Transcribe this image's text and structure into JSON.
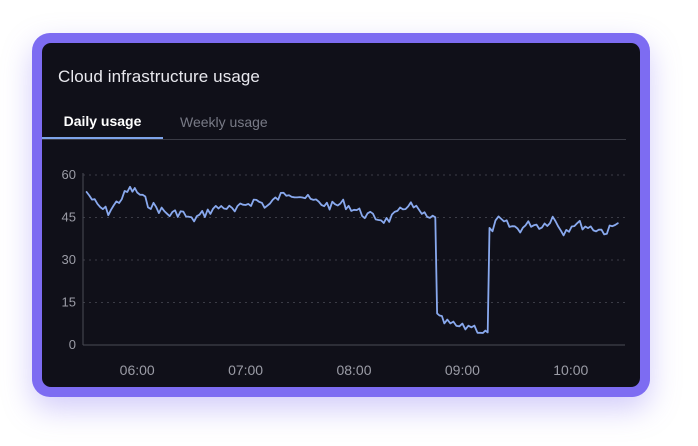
{
  "card": {
    "title": "Cloud infrastructure usage"
  },
  "tabs": [
    {
      "label": "Daily usage",
      "active": true
    },
    {
      "label": "Weekly usage",
      "active": false
    }
  ],
  "colors": {
    "frame": "#7d6cf2",
    "card_background": "#101019",
    "line": "#89a9ee",
    "active_tab_underline": "#7ea4ea",
    "gridline": "#3b3c46"
  },
  "chart_data": {
    "type": "line",
    "title": "",
    "xlabel": "",
    "ylabel": "",
    "xlim": [
      "05:30",
      "10:30"
    ],
    "ylim": [
      0,
      60
    ],
    "yticks": [
      0,
      15,
      30,
      45,
      60
    ],
    "xticks": [
      "06:00",
      "07:00",
      "08:00",
      "09:00",
      "10:00"
    ],
    "grid": "horizontal dotted",
    "legend": "none",
    "series": [
      {
        "x": [
          "05:32",
          "05:38",
          "05:44",
          "05:50",
          "05:56",
          "06:00",
          "06:06",
          "06:12",
          "06:18",
          "06:24",
          "06:30",
          "06:36",
          "06:42",
          "06:48",
          "06:54",
          "07:00",
          "07:06",
          "07:12",
          "07:18",
          "07:24",
          "07:30",
          "07:36",
          "07:42",
          "07:48",
          "07:54",
          "08:00",
          "08:06",
          "08:12",
          "08:18",
          "08:24",
          "08:30",
          "08:36",
          "08:42",
          "08:45",
          "08:46",
          "08:50",
          "08:55",
          "09:00",
          "09:05",
          "09:10",
          "09:14",
          "09:15",
          "09:20",
          "09:26",
          "09:32",
          "09:38",
          "09:44",
          "09:50",
          "09:56",
          "10:02",
          "10:08",
          "10:14",
          "10:20",
          "10:26"
        ],
        "y": [
          54,
          49,
          47,
          51,
          55,
          54,
          50,
          48,
          46,
          47,
          44,
          46,
          48,
          49,
          47,
          50,
          51,
          49,
          52,
          54,
          53,
          51,
          50,
          49,
          50,
          48,
          46,
          45,
          44,
          46,
          50,
          47,
          44,
          46,
          10,
          8,
          7,
          6,
          7,
          5,
          4,
          40,
          44,
          42,
          41,
          43,
          42,
          45,
          40,
          43,
          42,
          41,
          40,
          43
        ]
      }
    ]
  }
}
